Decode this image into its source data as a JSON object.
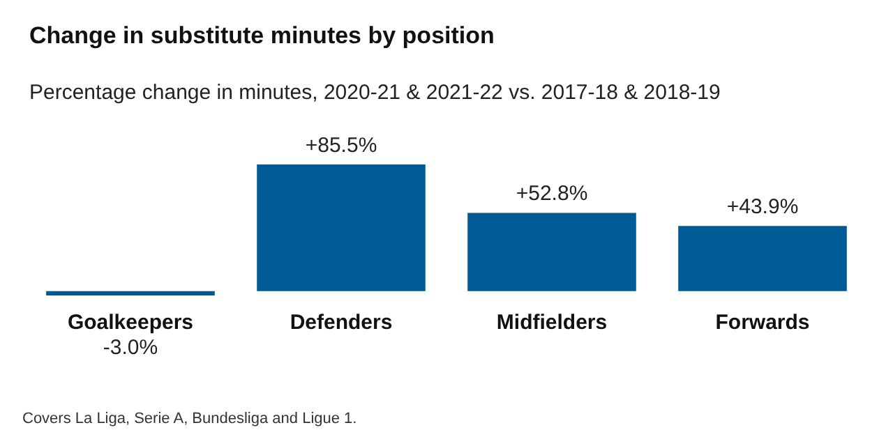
{
  "chart_data": {
    "type": "bar",
    "title": "Change in substitute minutes by position",
    "subtitle": "Percentage change in minutes, 2020-21 & 2021-22 vs. 2017-18 & 2018-19",
    "categories": [
      "Goalkeepers",
      "Defenders",
      "Midfielders",
      "Forwards"
    ],
    "values": [
      -3.0,
      85.5,
      52.8,
      43.9
    ],
    "color": "#005a96",
    "value_labels": [
      "-3.0%",
      "+85.5%",
      "+52.8%",
      "+43.9%"
    ],
    "annotations": [
      "Covers La Liga, Serie A, Bundesliga and Ligue 1."
    ]
  }
}
